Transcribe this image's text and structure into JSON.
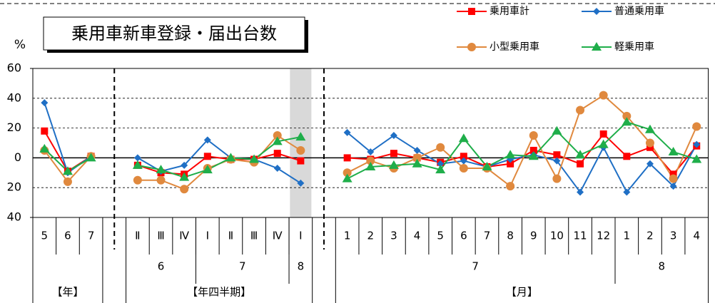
{
  "chart_data": {
    "type": "line",
    "title": "乗用車新車登録・届出台数",
    "y_unit": "%",
    "categories": [
      "5",
      "6",
      "7",
      null,
      "Ⅱ",
      "Ⅲ",
      "Ⅳ",
      "Ⅰ",
      "Ⅱ",
      "Ⅲ",
      "Ⅳ",
      "Ⅰ",
      null,
      "1",
      "2",
      "3",
      "4",
      "5",
      "6",
      "7",
      "8",
      "9",
      "10",
      "11",
      "12",
      "1",
      "2",
      "3",
      "4"
    ],
    "x_group_labels": [
      "6",
      "7",
      "8",
      "7",
      "8"
    ],
    "x_section_labels": [
      "【年】",
      "【年四半期】",
      "【月】"
    ],
    "ylim": [
      -40,
      60
    ],
    "yticks": [
      {
        "value": -40,
        "label": "40"
      },
      {
        "value": -20,
        "label": "20"
      },
      0,
      20,
      40,
      60
    ],
    "grid": true,
    "series": [
      {
        "name": "乗用車計",
        "color": "#ff0000",
        "marker": "square",
        "values": [
          18,
          -9,
          1,
          null,
          -5,
          -10,
          -11,
          1,
          -1,
          -1,
          3,
          -2,
          null,
          0,
          -1,
          3,
          0,
          -3,
          1,
          -6,
          -4,
          5,
          2,
          -4,
          16,
          1,
          7,
          -11,
          8
        ]
      },
      {
        "name": "普通乗用車",
        "color": "#1f6fc5",
        "marker": "diamond",
        "values": [
          37,
          -10,
          1,
          null,
          0,
          -9,
          -5,
          12,
          0,
          -1,
          -7,
          -17,
          null,
          17,
          4,
          15,
          5,
          -4,
          -2,
          -6,
          -1,
          2,
          -2,
          -23,
          7,
          -23,
          -4,
          -19,
          9
        ]
      },
      {
        "name": "小型乗用車",
        "color": "#e0893e",
        "marker": "circle",
        "values": [
          5,
          -16,
          1,
          null,
          -15,
          -15,
          -21,
          -7,
          -1,
          -3,
          15,
          5,
          null,
          -10,
          -2,
          -7,
          0,
          7,
          -7,
          -7,
          -19,
          15,
          -14,
          32,
          42,
          28,
          10,
          -14,
          21
        ]
      },
      {
        "name": "軽乗用車",
        "color": "#1fae4a",
        "marker": "triangle",
        "values": [
          6,
          -9,
          0,
          null,
          -5,
          -8,
          -13,
          -8,
          0,
          -1,
          11,
          14,
          null,
          -14,
          -6,
          -5,
          -4,
          -8,
          13,
          -6,
          2,
          1,
          18,
          2,
          9,
          24,
          19,
          4,
          -1
        ]
      }
    ]
  }
}
